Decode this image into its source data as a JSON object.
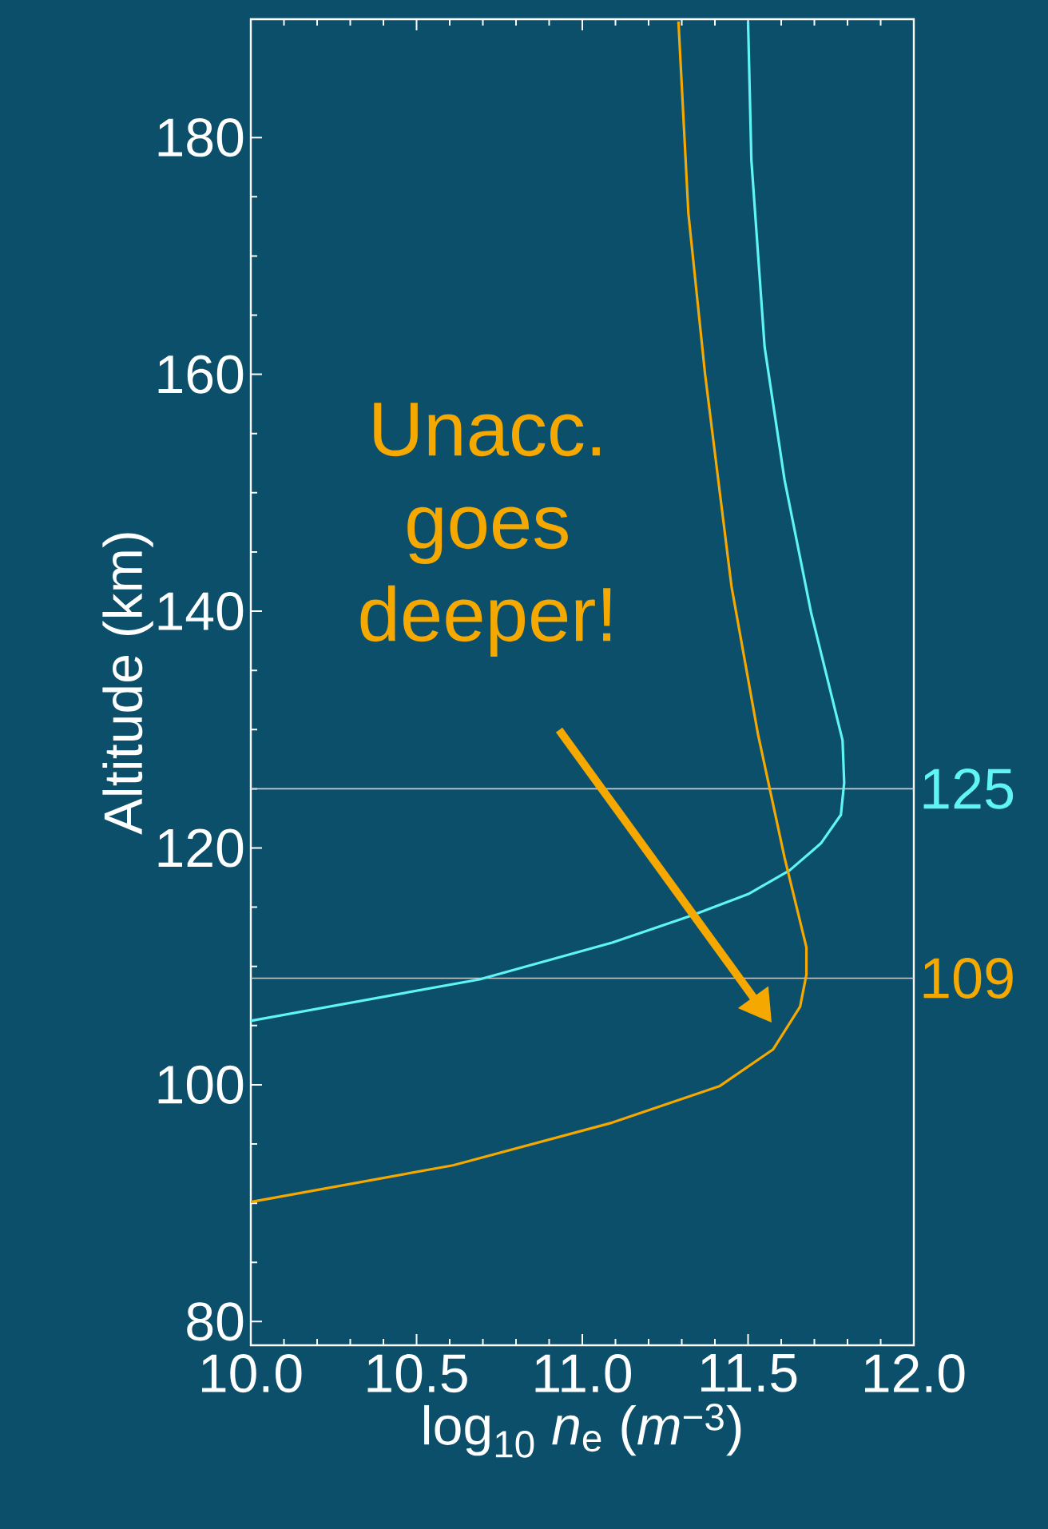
{
  "chart_data": {
    "type": "line",
    "xlabel": "log$_{10}$ *n*$_{e}$ (*m*$^{−3}$)",
    "ylabel": "Altitude (km)",
    "xlim": [
      10,
      12
    ],
    "ylim": [
      78,
      190
    ],
    "xticks": [
      {
        "value": 10,
        "label": "10.0"
      },
      {
        "value": 10.5,
        "label": "10.5"
      },
      {
        "value": 11,
        "label": "11.0"
      },
      {
        "value": 11.5,
        "label": "11.5"
      },
      {
        "value": 12,
        "label": "12.0"
      }
    ],
    "yticks": [
      80,
      100,
      120,
      140,
      160,
      180
    ],
    "grid": false,
    "marker": "none",
    "line_style": "solid",
    "series": [
      {
        "color": "#5ff5f5",
        "x": [
          10.0,
          10.69,
          11.09,
          11.33,
          11.5,
          11.625,
          11.72,
          11.78,
          11.79,
          11.785,
          11.69,
          11.61,
          11.55,
          11.51,
          11.5
        ],
        "values": [
          105.4,
          108.9,
          112.0,
          114.3,
          116.1,
          118.1,
          120.4,
          122.8,
          125.5,
          129.1,
          139.9,
          151.1,
          162.3,
          178.1,
          189.8
        ]
      },
      {
        "color": "#f5a800",
        "x": [
          10.0,
          10.61,
          11.09,
          11.415,
          11.576,
          11.657,
          11.676,
          11.676,
          11.61,
          11.53,
          11.45,
          11.37,
          11.32,
          11.29
        ],
        "values": [
          90.1,
          93.2,
          96.8,
          99.9,
          103.0,
          106.6,
          109.3,
          111.6,
          119.2,
          129.6,
          142.1,
          160.1,
          173.6,
          189.8
        ]
      }
    ],
    "ref_lines": [
      {
        "axis": "y",
        "value": 125,
        "label": "125",
        "color": "#cccccc"
      },
      {
        "axis": "y",
        "value": 109,
        "label": "109",
        "color": "#cccccc"
      }
    ],
    "annotations": [
      "Unacc. goes deeper!"
    ]
  }
}
